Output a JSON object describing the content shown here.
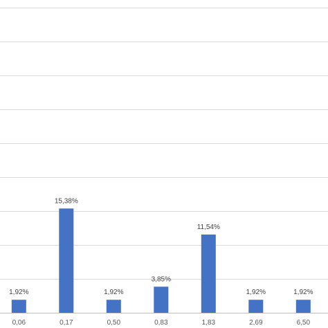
{
  "chart_data": {
    "type": "bar",
    "categories": [
      "0,06",
      "0,17",
      "0,50",
      "0,83",
      "1,83",
      "2,69",
      "6,50"
    ],
    "values": [
      1.92,
      15.38,
      1.92,
      3.85,
      11.54,
      1.92,
      1.92
    ],
    "data_labels": [
      "1,92%",
      "15,38%",
      "1,92%",
      "3,85%",
      "11,54%",
      "1,92%",
      "1,92%"
    ],
    "ylim": [
      0,
      45
    ],
    "gridlines_y": [
      5,
      10,
      15,
      20,
      25,
      30,
      35,
      40,
      45
    ],
    "grid": true,
    "legend": "none",
    "colors": {
      "bar": "#4472c4",
      "grid": "#d9d9d9"
    }
  }
}
